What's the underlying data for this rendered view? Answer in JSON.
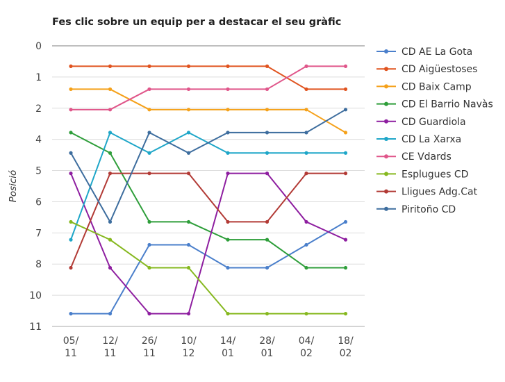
{
  "chart_data": {
    "type": "line",
    "title": "Fes clic sobre un equip per a destacar el seu gràfic",
    "ylabel": "Posició",
    "xlabel": "",
    "y_tick_labels": [
      "0",
      "1",
      "2",
      "4",
      "5",
      "6",
      "7",
      "8",
      "10",
      "11"
    ],
    "y_reversed": true,
    "ylim": [
      0,
      11
    ],
    "categories": [
      [
        "05/",
        "11"
      ],
      [
        "12/",
        "11"
      ],
      [
        "26/",
        "11"
      ],
      [
        "10/",
        "12"
      ],
      [
        "14/",
        "01"
      ],
      [
        "28/",
        "01"
      ],
      [
        "04/",
        "02"
      ],
      [
        "18/",
        "02"
      ]
    ],
    "grid": true,
    "legend_position": "right",
    "series": [
      {
        "name": "CD AE La Gota",
        "color": "#4a7fcb",
        "values": [
          10.5,
          10.5,
          7.8,
          7.8,
          8.7,
          8.7,
          7.8,
          6.9
        ]
      },
      {
        "name": "CD Aigüestoses",
        "color": "#e0531f",
        "values": [
          0.8,
          0.8,
          0.8,
          0.8,
          0.8,
          0.8,
          1.7,
          1.7
        ]
      },
      {
        "name": "CD Baix Camp",
        "color": "#f5a11a",
        "values": [
          1.7,
          1.7,
          2.5,
          2.5,
          2.5,
          2.5,
          2.5,
          3.4
        ]
      },
      {
        "name": "CD El Barrio Navàs",
        "color": "#2e9e3a",
        "values": [
          3.4,
          4.2,
          6.9,
          6.9,
          7.6,
          7.6,
          8.7,
          8.7
        ]
      },
      {
        "name": "CD Guardiola",
        "color": "#8e1ea0",
        "values": [
          5.0,
          8.7,
          10.5,
          10.5,
          5.0,
          5.0,
          6.9,
          7.6
        ]
      },
      {
        "name": "CD La Xarxa",
        "color": "#1ea6c8",
        "values": [
          7.6,
          3.4,
          4.2,
          3.4,
          4.2,
          4.2,
          4.2,
          4.2
        ]
      },
      {
        "name": "CE Vdards",
        "color": "#e0568a",
        "values": [
          2.5,
          2.5,
          1.7,
          1.7,
          1.7,
          1.7,
          0.8,
          0.8
        ]
      },
      {
        "name": "Esplugues CD",
        "color": "#86b81f",
        "values": [
          6.9,
          7.6,
          8.7,
          8.7,
          10.5,
          10.5,
          10.5,
          10.5
        ]
      },
      {
        "name": "Lligues Adg.Cat",
        "color": "#b23a35",
        "values": [
          8.7,
          5.0,
          5.0,
          5.0,
          6.9,
          6.9,
          5.0,
          5.0
        ]
      },
      {
        "name": "Piritoño CD",
        "color": "#3d6d9e",
        "values": [
          4.2,
          6.9,
          3.4,
          4.2,
          3.4,
          3.4,
          3.4,
          2.5
        ]
      }
    ]
  }
}
